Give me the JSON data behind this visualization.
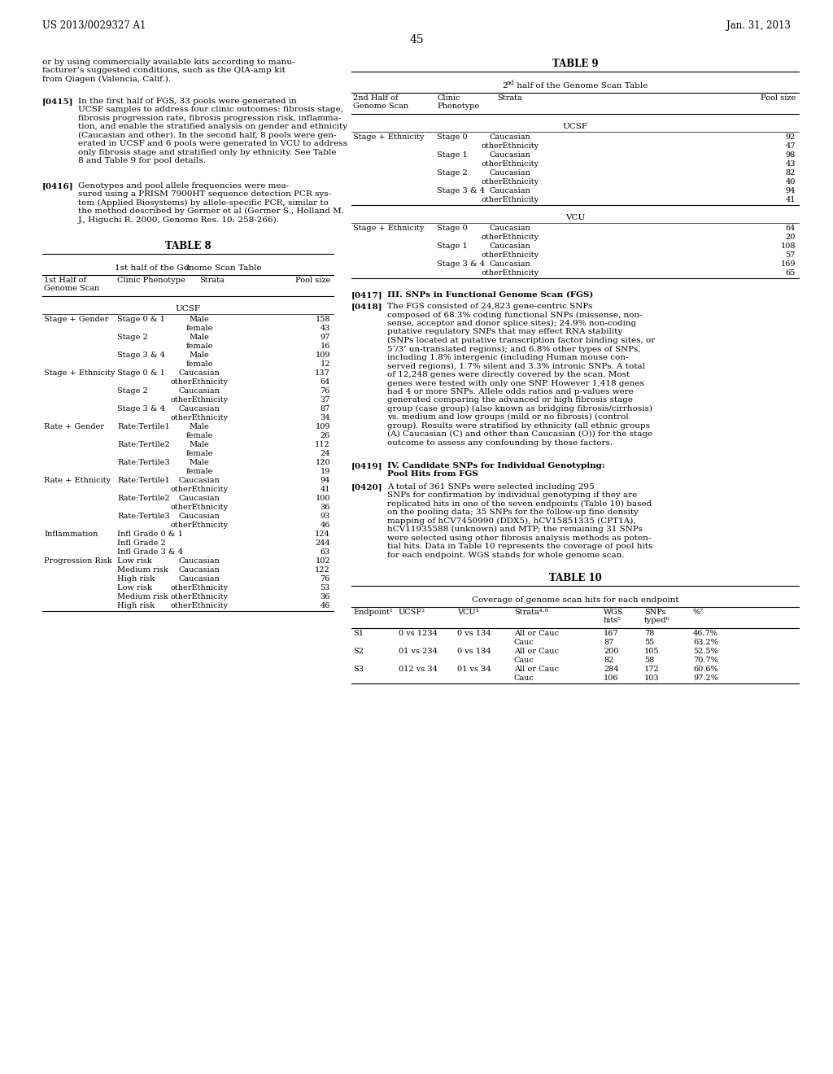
{
  "page_number": "45",
  "patent_left": "US 2013/0029327 A1",
  "patent_right": "Jan. 31, 2013",
  "background": "#ffffff",
  "left_paragraphs": [
    {
      "tag": "",
      "text": "or by using commercially available kits according to manu-\nfacturer’s suggested conditions, such as the QIA-amp kit\nfrom Qiagen (Valencia, Calif.)."
    },
    {
      "tag": "[0415]",
      "text": "In the first half of FGS, 33 pools were generated in\nUCSF samples to address four clinic outcomes: fibrosis stage,\nfibrosis progression rate, fibrosis progression risk, inflamma-\ntion, and enable the stratified analysis on gender and ethnicity\n(Caucasian and other). In the second half, 8 pools were gen-\nerated in UCSF and 6 pools were generated in VCU to address\nonly fibrosis stage and stratified only by ethnicity. See Table\n8 and Table 9 for pool details."
    },
    {
      "tag": "[0416]",
      "text": "Genotypes and pool allele frequencies were mea-\nsured using a PRISM 7900HT sequence detection PCR sys-\ntem (Applied Biosystems) by allele-specific PCR, similar to\nthe method described by Germer et al (Germer S., Holland M.\nJ., Higuchi R. 2000, Genome Res. 10: 258-266)."
    }
  ],
  "table8_title": "TABLE 8",
  "table8_subtitle": "1st half of the Genome Scan Table",
  "table8_rows": [
    [
      "Stage + Gender",
      "Stage 0 & 1",
      "Male",
      "158"
    ],
    [
      "",
      "",
      "female",
      "43"
    ],
    [
      "",
      "Stage 2",
      "Male",
      "97"
    ],
    [
      "",
      "",
      "female",
      "16"
    ],
    [
      "",
      "Stage 3 & 4",
      "Male",
      "109"
    ],
    [
      "",
      "",
      "female",
      "12"
    ],
    [
      "Stage + Ethnicity",
      "Stage 0 & 1",
      "Caucasian",
      "137"
    ],
    [
      "",
      "",
      "otherEthnicity",
      "64"
    ],
    [
      "",
      "Stage 2",
      "Caucasian",
      "76"
    ],
    [
      "",
      "",
      "otherEthnicity",
      "37"
    ],
    [
      "",
      "Stage 3 & 4",
      "Caucasian",
      "87"
    ],
    [
      "",
      "",
      "otherEthnicity",
      "34"
    ],
    [
      "Rate + Gender",
      "Rate:Tertile1",
      "Male",
      "109"
    ],
    [
      "",
      "",
      "female",
      "26"
    ],
    [
      "",
      "Rate:Tertile2",
      "Male",
      "112"
    ],
    [
      "",
      "",
      "female",
      "24"
    ],
    [
      "",
      "Rate:Tertile3",
      "Male",
      "120"
    ],
    [
      "",
      "",
      "female",
      "19"
    ],
    [
      "Rate + Ethnicity",
      "Rate:Tertile1",
      "Caucasian",
      "94"
    ],
    [
      "",
      "",
      "otherEthnicity",
      "41"
    ],
    [
      "",
      "Rate:Tertile2",
      "Caucasian",
      "100"
    ],
    [
      "",
      "",
      "otherEthnicity",
      "36"
    ],
    [
      "",
      "Rate:Tertile3",
      "Caucasian",
      "93"
    ],
    [
      "",
      "",
      "otherEthnicity",
      "46"
    ],
    [
      "Inflammation",
      "Infl Grade 0 & 1",
      "",
      "124"
    ],
    [
      "",
      "Infl Grade 2",
      "",
      "244"
    ],
    [
      "",
      "Infl Grade 3 & 4",
      "",
      "63"
    ],
    [
      "Progression Risk",
      "Low risk",
      "Caucasian",
      "102"
    ],
    [
      "",
      "Medium risk",
      "Caucasian",
      "122"
    ],
    [
      "",
      "High risk",
      "Caucasian",
      "76"
    ],
    [
      "",
      "Low risk",
      "otherEthnicity",
      "53"
    ],
    [
      "",
      "Medium risk",
      "otherEthnicity",
      "36"
    ],
    [
      "",
      "High risk",
      "otherEthnicity",
      "46"
    ]
  ],
  "table9_title": "TABLE 9",
  "table9_subtitle_pre": "2",
  "table9_subtitle_super": "nd",
  "table9_subtitle_post": " half of the Genome Scan Table",
  "table9_rows_ucsf": [
    [
      "Stage + Ethnicity",
      "Stage 0",
      "Caucasian",
      "92"
    ],
    [
      "",
      "",
      "otherEthnicity",
      "47"
    ],
    [
      "",
      "Stage 1",
      "Caucasian",
      "98"
    ],
    [
      "",
      "",
      "otherEthnicity",
      "43"
    ],
    [
      "",
      "Stage 2",
      "Caucasian",
      "82"
    ],
    [
      "",
      "",
      "otherEthnicity",
      "40"
    ],
    [
      "",
      "Stage 3 & 4",
      "Caucasian",
      "94"
    ],
    [
      "",
      "",
      "otherEthnicity",
      "41"
    ]
  ],
  "table9_rows_vcu": [
    [
      "Stage + Ethnicity",
      "Stage 0",
      "Caucasian",
      "64"
    ],
    [
      "",
      "",
      "otherEthnicity",
      "20"
    ],
    [
      "",
      "Stage 1",
      "Caucasian",
      "108"
    ],
    [
      "",
      "",
      "otherEthnicity",
      "57"
    ],
    [
      "",
      "Stage 3 & 4",
      "Caucasian",
      "169"
    ],
    [
      "",
      "",
      "otherEthnicity",
      "65"
    ]
  ],
  "right_para_0417_tag": "[0417]",
  "right_para_0417_text": "III. SNPs in Functional Genome Scan (FGS)",
  "right_para_0418_tag": "[0418]",
  "right_para_0418_text": "The FGS consisted of 24,823 gene-centric SNPs\ncomposed of 68.3% coding functional SNPs (missense, non-\nsense, acceptor and donor splice sites); 24.9% non-coding\nputative regulatory SNPs that may effect RNA stability\n(SNPs located at putative transcription factor binding sites, or\n5’/3’ un-translated regions); and 6.8% other types of SNPs,\nincluding 1.8% intergenic (including Human mouse con-\nserved regions), 1.7% silent and 3.3% intronic SNPs. A total\nof 12,248 genes were directly covered by the scan. Most\ngenes were tested with only one SNP. However 1,418 genes\nhad 4 or more SNPs. Allele odds ratios and p-values were\ngenerated comparing the advanced or high fibrosis stage\ngroup (case group) (also known as bridging fibrosis/cirrhosis)\nvs. medium and low groups (mild or no fibrosis) (control\ngroup). Results were stratified by ethnicity (all ethnic groups\n(A) Caucasian (C) and other than Caucasian (O)) for the stage\noutcome to assess any confounding by these factors.",
  "right_para_0419_tag": "[0419]",
  "right_para_0419_text": "IV. Candidate SNPs for Individual Genotyping:\nPool Hits from FGS",
  "right_para_0420_tag": "[0420]",
  "right_para_0420_text": "A total of 361 SNPs were selected including 295\nSNPs for confirmation by individual genotyping if they are\nreplicated hits in one of the seven endpoints (Table 10) based\non the pooling data; 35 SNPs for the follow-up fine density\nmapping of hCV7450990 (DDX5), hCV15851335 (CPT1A),\nhCV11935588 (unknown) and MTP; the remaining 31 SNPs\nwere selected using other fibrosis analysis methods as poten-\ntial hits. Data in Table 10 represents the coverage of pool hits\nfor each endpoint. WGS stands for whole genome scan.",
  "table10_title": "TABLE 10",
  "table10_subtitle": "Coverage of genome scan hits for each endpoint",
  "table10_rows": [
    [
      "S1",
      "0 vs 1234",
      "0 vs 134",
      "All or Cauc",
      "167",
      "78",
      "46.7%"
    ],
    [
      "",
      "",
      "",
      "Cauc",
      "87",
      "55",
      "63.2%"
    ],
    [
      "S2",
      "01 vs 234",
      "0 vs 134",
      "All or Cauc",
      "200",
      "105",
      "52.5%"
    ],
    [
      "",
      "",
      "",
      "Cauc",
      "82",
      "58",
      "70.7%"
    ],
    [
      "S3",
      "012 vs 34",
      "01 vs 34",
      "All or Cauc",
      "284",
      "172",
      "60.6%"
    ],
    [
      "",
      "",
      "",
      "Cauc",
      "106",
      "103",
      "97.2%"
    ]
  ]
}
